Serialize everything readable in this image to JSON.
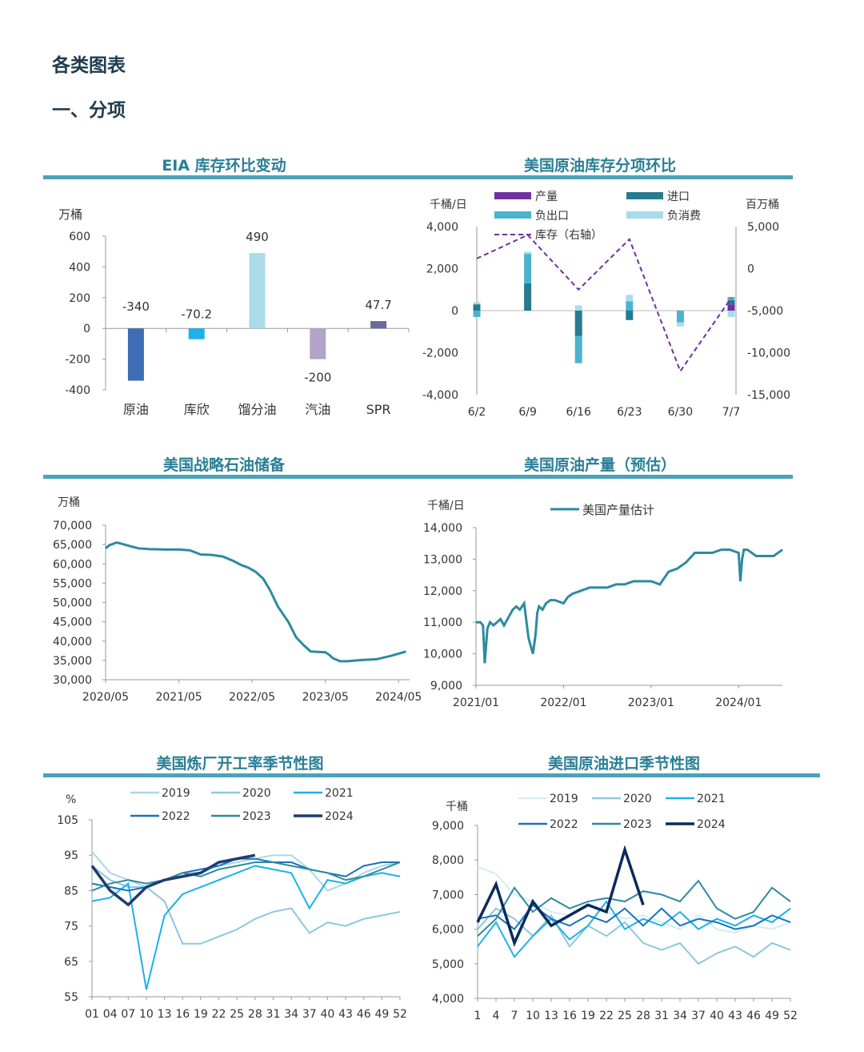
{
  "page": {
    "heading": "各类图表",
    "subheading": "一、分项"
  },
  "colors": {
    "accent": "#4aa3b8",
    "title": "#2a7f95"
  },
  "chart_data": [
    {
      "id": "eia",
      "type": "bar",
      "title": "EIA 库存环比变动",
      "ylabel": "万桶",
      "ylim": [
        -400,
        600
      ],
      "yticks": [
        600,
        400,
        200,
        0,
        -200,
        -400
      ],
      "categories": [
        "原油",
        "库欣",
        "馏分油",
        "汽油",
        "SPR"
      ],
      "values": [
        -340,
        -70.2,
        490,
        -200,
        47.7
      ],
      "value_labels": [
        "-340",
        "-70.2",
        "490",
        "-200",
        "47.7"
      ],
      "colors": [
        "#3e6db5",
        "#1cb1e9",
        "#a9dbe8",
        "#b3a3c8",
        "#6a6a9e"
      ]
    },
    {
      "id": "components",
      "type": "bar",
      "title": "美国原油库存分项环比",
      "ylabel_left": "千桶/日",
      "ylabel_right": "百万桶",
      "ylim_left": [
        -4000,
        4000
      ],
      "ylim_right": [
        -15000,
        5000
      ],
      "yticks_left": [
        "4,000",
        "2,000",
        "0",
        "-2,000",
        "-4,000"
      ],
      "yticks_right": [
        "5,000",
        "0",
        "-5,000",
        "-10,000",
        "-15,000"
      ],
      "categories": [
        "6/2",
        "6/9",
        "6/16",
        "6/23",
        "6/30",
        "7/7"
      ],
      "legend": [
        "产量",
        "进口",
        "负出口",
        "负消费",
        "库存（右轴）"
      ],
      "series": [
        {
          "name": "产量",
          "color": "#7030a0",
          "values": [
            0,
            0,
            0,
            0,
            0,
            300
          ]
        },
        {
          "name": "进口",
          "color": "#267b8f",
          "values": [
            300,
            1300,
            -1200,
            -450,
            0,
            200
          ]
        },
        {
          "name": "负出口",
          "color": "#4ab3cf",
          "values": [
            -300,
            1400,
            -1300,
            450,
            -550,
            150
          ]
        },
        {
          "name": "负消费",
          "color": "#a8dcea",
          "values": [
            100,
            100,
            250,
            300,
            -200,
            -300
          ]
        },
        {
          "name": "库存（右轴）",
          "color": "#7030a0",
          "style": "dashed",
          "axis": "right",
          "values": [
            1200,
            4000,
            -2500,
            3500,
            -12200,
            -3500
          ]
        }
      ]
    },
    {
      "id": "spr",
      "type": "line",
      "title": "美国战略石油储备",
      "ylabel": "万桶",
      "ylim": [
        30000,
        70000
      ],
      "yticks": [
        "70,000",
        "65,000",
        "60,000",
        "55,000",
        "50,000",
        "45,000",
        "40,000",
        "35,000",
        "30,000"
      ],
      "xticks": [
        "2020/05",
        "2021/05",
        "2022/05",
        "2023/05",
        "2024/05"
      ],
      "x": [
        0,
        0.05,
        0.15,
        0.2,
        0.35,
        0.45,
        0.6,
        0.8,
        1.0,
        1.15,
        1.3,
        1.45,
        1.6,
        1.75,
        1.85,
        1.95,
        2.05,
        2.15,
        2.25,
        2.35,
        2.5,
        2.6,
        2.7,
        2.8,
        2.9,
        3.0,
        3.05,
        3.1,
        3.2,
        3.3,
        3.5,
        3.7,
        3.9,
        4.1
      ],
      "values": [
        64000,
        64800,
        65500,
        65300,
        64500,
        64000,
        63800,
        63700,
        63700,
        63500,
        62400,
        62300,
        61900,
        60700,
        59700,
        59000,
        57900,
        56200,
        53000,
        49000,
        44800,
        41000,
        39000,
        37300,
        37200,
        37100,
        36500,
        35600,
        34800,
        34800,
        35100,
        35300,
        36200,
        37300
      ],
      "color": "#2e8aa0"
    },
    {
      "id": "production",
      "type": "line",
      "title": "美国原油产量（预估）",
      "ylabel": "千桶/日",
      "ylim": [
        9000,
        14000
      ],
      "yticks": [
        "14,000",
        "13,000",
        "12,000",
        "11,000",
        "10,000",
        "9,000"
      ],
      "xticks": [
        "2021/01",
        "2022/01",
        "2023/01",
        "2024/01"
      ],
      "legend": [
        "美国产量估计"
      ],
      "x": [
        0,
        0.05,
        0.08,
        0.1,
        0.13,
        0.16,
        0.2,
        0.24,
        0.28,
        0.32,
        0.38,
        0.42,
        0.46,
        0.5,
        0.55,
        0.6,
        0.65,
        0.68,
        0.7,
        0.72,
        0.76,
        0.8,
        0.85,
        0.9,
        1.0,
        1.05,
        1.1,
        1.2,
        1.3,
        1.4,
        1.5,
        1.6,
        1.7,
        1.8,
        1.9,
        2.0,
        2.1,
        2.2,
        2.3,
        2.4,
        2.5,
        2.55,
        2.6,
        2.7,
        2.8,
        2.9,
        3.0,
        3.02,
        3.04,
        3.06,
        3.1,
        3.2,
        3.3,
        3.4,
        3.5
      ],
      "values": [
        11000,
        11000,
        10900,
        9700,
        10800,
        11000,
        10900,
        11000,
        11100,
        10900,
        11200,
        11400,
        11500,
        11400,
        11600,
        10500,
        10000,
        10600,
        11300,
        11500,
        11400,
        11600,
        11700,
        11700,
        11600,
        11800,
        11900,
        12000,
        12100,
        12100,
        12100,
        12200,
        12200,
        12300,
        12300,
        12300,
        12200,
        12600,
        12700,
        12900,
        13200,
        13200,
        13200,
        13200,
        13300,
        13300,
        13200,
        12300,
        13000,
        13300,
        13300,
        13100,
        13100,
        13100,
        13300
      ],
      "color": "#2e8aa0"
    },
    {
      "id": "refinery",
      "type": "line",
      "title": "美国炼厂开工率季节性图",
      "ylabel": "%",
      "ylim": [
        55,
        105
      ],
      "yticks": [
        "105",
        "95",
        "85",
        "75",
        "65",
        "55"
      ],
      "xticks": [
        "01",
        "04",
        "07",
        "10",
        "13",
        "16",
        "19",
        "22",
        "25",
        "28",
        "31",
        "34",
        "37",
        "40",
        "43",
        "46",
        "49",
        "52"
      ],
      "x": [
        1,
        4,
        7,
        10,
        13,
        16,
        19,
        22,
        25,
        28,
        31,
        34,
        37,
        40,
        43,
        46,
        49,
        52
      ],
      "series": [
        {
          "name": "2019",
          "color": "#a8d8e8",
          "values": [
            96,
            90,
            88,
            86,
            88,
            90,
            90,
            92,
            93,
            94,
            95,
            95,
            91,
            85,
            87,
            90,
            92,
            93
          ]
        },
        {
          "name": "2020",
          "color": "#8cc8dc",
          "values": [
            92,
            88,
            86,
            86,
            82,
            70,
            70,
            72,
            74,
            77,
            79,
            80,
            73,
            76,
            75,
            77,
            78,
            79
          ]
        },
        {
          "name": "2021",
          "color": "#1cb1e9",
          "values": [
            82,
            83,
            87,
            57,
            78,
            84,
            86,
            88,
            90,
            92,
            91,
            90,
            80,
            88,
            87,
            89,
            90,
            89
          ]
        },
        {
          "name": "2022",
          "color": "#1a73b9",
          "values": [
            87,
            86,
            85,
            86,
            88,
            90,
            91,
            92,
            94,
            94,
            93,
            93,
            91,
            90,
            89,
            92,
            93,
            93
          ]
        },
        {
          "name": "2023",
          "color": "#2e8aa0",
          "values": [
            85,
            87,
            88,
            87,
            88,
            90,
            89,
            91,
            92,
            93,
            93,
            92,
            91,
            90,
            88,
            89,
            91,
            93
          ]
        },
        {
          "name": "2024",
          "color": "#1f3c6e",
          "values": [
            92,
            85,
            81,
            86,
            88,
            89,
            90,
            93,
            94,
            95,
            null,
            null,
            null,
            null,
            null,
            null,
            null,
            null
          ]
        }
      ]
    },
    {
      "id": "imports",
      "type": "line",
      "title": "美国原油进口季节性图",
      "ylabel": "千桶",
      "ylim": [
        4000,
        9000
      ],
      "yticks": [
        "9,000",
        "8,000",
        "7,000",
        "6,000",
        "5,000",
        "4,000"
      ],
      "xticks": [
        "1",
        "4",
        "7",
        "10",
        "13",
        "16",
        "19",
        "22",
        "25",
        "28",
        "31",
        "34",
        "37",
        "40",
        "43",
        "46",
        "49",
        "52"
      ],
      "x": [
        1,
        4,
        7,
        10,
        13,
        16,
        19,
        22,
        25,
        28,
        31,
        34,
        37,
        40,
        43,
        46,
        49,
        52
      ],
      "series": [
        {
          "name": "2019",
          "color": "#d5ecf3",
          "values": [
            7800,
            7600,
            7000,
            6800,
            6500,
            6400,
            6700,
            6500,
            6300,
            6400,
            6200,
            6000,
            6400,
            6000,
            5900,
            6100,
            6000,
            6200
          ]
        },
        {
          "name": "2020",
          "color": "#8cc8dc",
          "values": [
            6000,
            6600,
            6300,
            5800,
            6400,
            5500,
            6100,
            5800,
            6200,
            5600,
            5400,
            5600,
            5000,
            5300,
            5500,
            5200,
            5600,
            5400
          ]
        },
        {
          "name": "2021",
          "color": "#1cb1e9",
          "values": [
            5500,
            6200,
            5200,
            5800,
            6300,
            5700,
            6100,
            6800,
            6000,
            6300,
            6100,
            6500,
            6000,
            6300,
            6100,
            6400,
            6200,
            6600
          ]
        },
        {
          "name": "2022",
          "color": "#1a73b9",
          "values": [
            6300,
            6400,
            6000,
            6700,
            6300,
            6100,
            6400,
            6200,
            6600,
            6100,
            6600,
            6100,
            6300,
            6200,
            6000,
            6100,
            6400,
            6200
          ]
        },
        {
          "name": "2023",
          "color": "#2e8aa0",
          "values": [
            5800,
            6300,
            7200,
            6500,
            6900,
            6600,
            6800,
            6900,
            6800,
            7100,
            7000,
            6800,
            7400,
            6600,
            6300,
            6500,
            7200,
            6800
          ]
        },
        {
          "name": "2024",
          "color": "#0d2a5c",
          "values": [
            6200,
            7300,
            5600,
            6800,
            6100,
            6400,
            6700,
            6500,
            8300,
            6700,
            null,
            null,
            null,
            null,
            null,
            null,
            null,
            null
          ]
        }
      ]
    }
  ]
}
